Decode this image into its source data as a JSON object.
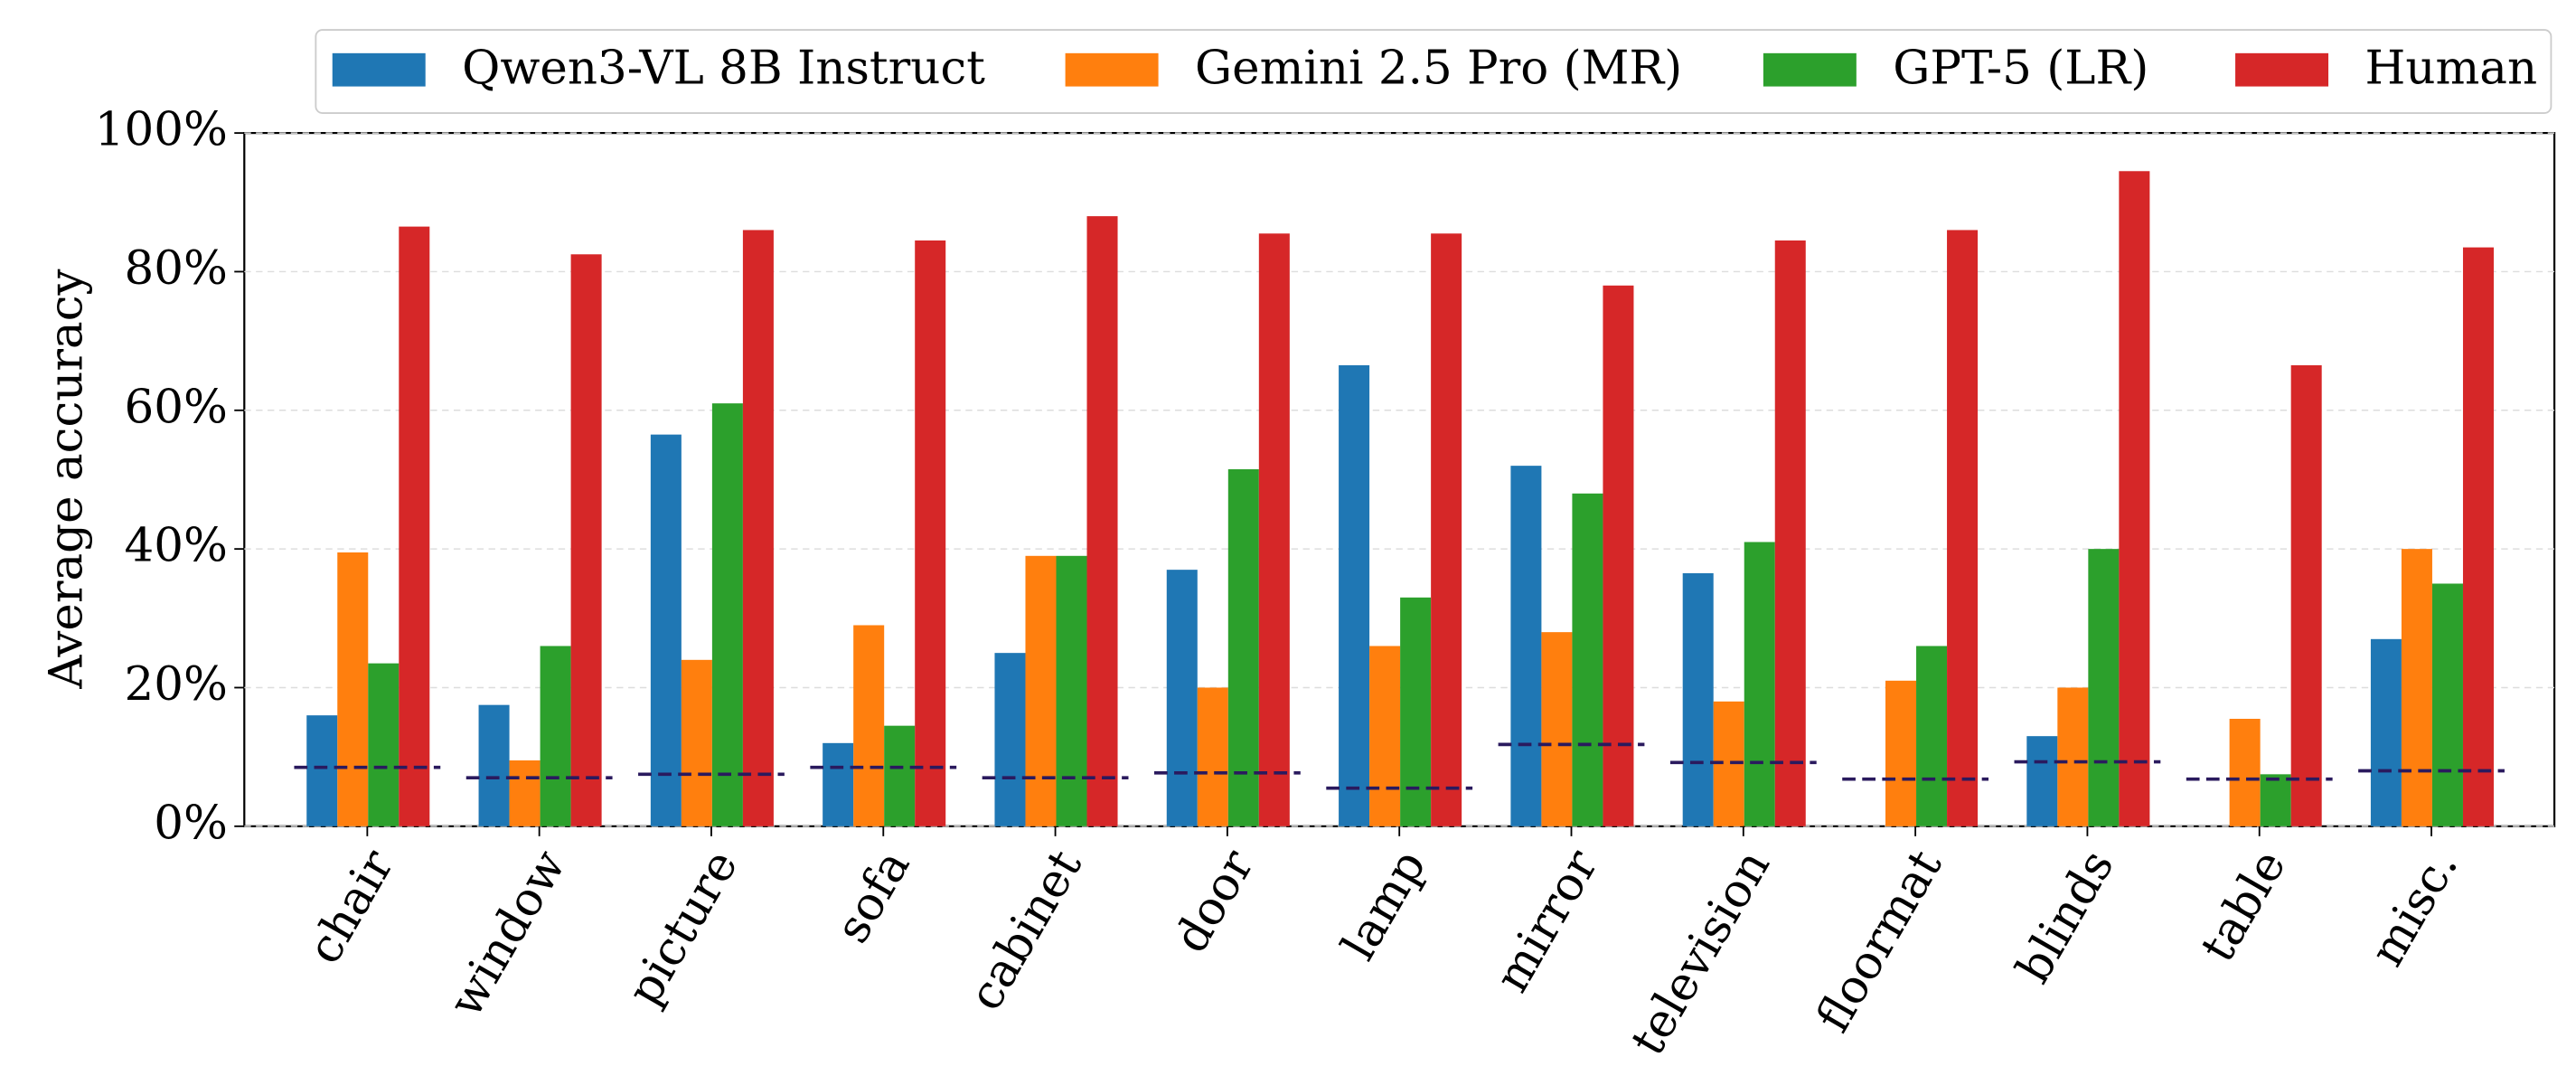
{
  "chart_data": {
    "type": "bar",
    "y_label": "Average accuracy",
    "categories": [
      "chair",
      "window",
      "picture",
      "sofa",
      "cabinet",
      "door",
      "lamp",
      "mirror",
      "television",
      "floormat",
      "blinds",
      "table",
      "misc."
    ],
    "series": [
      {
        "name": "Qwen3-VL 8B Instruct",
        "color": "#1f77b4",
        "values": [
          16,
          17.5,
          56.5,
          12,
          25,
          37,
          66.5,
          52,
          36.5,
          null,
          13,
          null,
          27
        ]
      },
      {
        "name": "Gemini 2.5 Pro (MR)",
        "color": "#ff7f0e",
        "values": [
          39.5,
          9.5,
          24,
          29,
          39,
          20,
          26,
          28,
          18,
          21,
          20,
          15.5,
          40
        ]
      },
      {
        "name": "GPT-5 (LR)",
        "color": "#2ca02c",
        "values": [
          23.5,
          26,
          61,
          14.5,
          39,
          51.5,
          33,
          48,
          41,
          26,
          40,
          7.5,
          35
        ]
      },
      {
        "name": "Human",
        "color": "#d62728",
        "values": [
          86.5,
          82.5,
          86,
          84.5,
          88,
          85.5,
          85.5,
          78,
          84.5,
          86,
          94.5,
          66.5,
          83.5
        ]
      }
    ],
    "reference_lines": {
      "color": "#2a1a5e",
      "values": [
        8.5,
        7,
        7.5,
        8.5,
        7,
        7.7,
        5.5,
        11.8,
        9.2,
        6.8,
        9.3,
        6.8,
        8
      ]
    },
    "ylim": [
      0,
      100
    ],
    "yticks": [
      {
        "value": 0,
        "label": "0%"
      },
      {
        "value": 20,
        "label": "20%"
      },
      {
        "value": 40,
        "label": "40%"
      },
      {
        "value": 60,
        "label": "60%"
      },
      {
        "value": 80,
        "label": "80%"
      },
      {
        "value": 100,
        "label": "100%"
      }
    ],
    "grid": true,
    "legend": "top"
  }
}
